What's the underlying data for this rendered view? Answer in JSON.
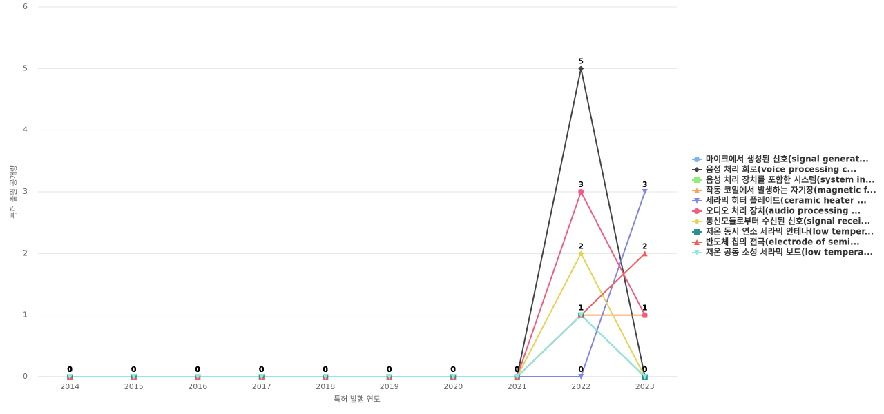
{
  "chart_data": {
    "type": "line",
    "x_label": "특허 발행 연도",
    "y_label": "특허 출원 공개량",
    "categories": [
      "2014",
      "2015",
      "2016",
      "2017",
      "2018",
      "2019",
      "2020",
      "2021",
      "2022",
      "2023"
    ],
    "ylim": [
      0,
      6
    ],
    "yticks": [
      0,
      1,
      2,
      3,
      4,
      5,
      6
    ],
    "grid": true,
    "series": [
      {
        "name": "마이크에서 생성된 신호(signal generat...",
        "color": "#7cb5ec",
        "marker": "circle",
        "values": [
          0,
          0,
          0,
          0,
          0,
          0,
          0,
          0,
          1,
          0
        ]
      },
      {
        "name": "음성 처리 회로(voice processing c...",
        "color": "#434348",
        "marker": "diamond",
        "values": [
          0,
          0,
          0,
          0,
          0,
          0,
          0,
          0,
          5,
          0
        ]
      },
      {
        "name": "음성 처리 장치를 포함한 시스템(system in...",
        "color": "#90ed7d",
        "marker": "square",
        "values": [
          0,
          0,
          0,
          0,
          0,
          0,
          0,
          0,
          1,
          0
        ]
      },
      {
        "name": "작동 코일에서 발생하는 자기장(magnetic f...",
        "color": "#f7a35c",
        "marker": "triangle",
        "values": [
          0,
          0,
          0,
          0,
          0,
          0,
          0,
          0,
          1,
          1
        ]
      },
      {
        "name": "세라믹 히터 플레이트(ceramic heater ...",
        "color": "#8085e9",
        "marker": "triangle-down",
        "values": [
          0,
          0,
          0,
          0,
          0,
          0,
          0,
          0,
          0,
          3
        ]
      },
      {
        "name": "오디오 처리 장치(audio processing ...",
        "color": "#f15c80",
        "marker": "circle",
        "values": [
          0,
          0,
          0,
          0,
          0,
          0,
          0,
          0,
          3,
          1
        ]
      },
      {
        "name": "통신모듈로부터 수신된 신호(signal recei...",
        "color": "#e4d354",
        "marker": "diamond",
        "values": [
          0,
          0,
          0,
          0,
          0,
          0,
          0,
          0,
          2,
          0
        ]
      },
      {
        "name": "저온 동시 연소 세라믹 안테나(low temper...",
        "color": "#2b908f",
        "marker": "square",
        "values": [
          0,
          0,
          0,
          0,
          0,
          0,
          0,
          0,
          1,
          0
        ]
      },
      {
        "name": "반도체 칩의 전극(electrode of semi...",
        "color": "#f45b5b",
        "marker": "triangle",
        "values": [
          0,
          0,
          0,
          0,
          0,
          0,
          0,
          0,
          1,
          2
        ]
      },
      {
        "name": "저온 공동 소성 세라믹 보드(low tempera...",
        "color": "#91e8e1",
        "marker": "triangle-down",
        "values": [
          0,
          0,
          0,
          0,
          0,
          0,
          0,
          0,
          1,
          0
        ]
      }
    ]
  }
}
